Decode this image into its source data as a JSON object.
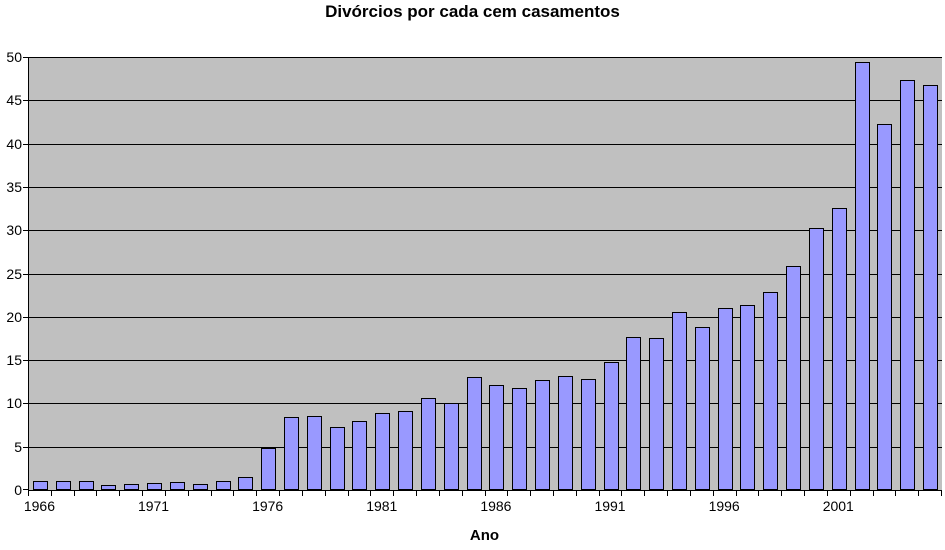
{
  "chart_data": {
    "type": "bar",
    "title": "Divórcios por cada cem casamentos",
    "xlabel": "Ano",
    "ylabel": "",
    "ylim": [
      0,
      50
    ],
    "ytick_step": 5,
    "yticks": [
      0,
      5,
      10,
      15,
      20,
      25,
      30,
      35,
      40,
      45,
      50
    ],
    "grid": true,
    "legend": false,
    "categories": [
      "1966",
      "1967",
      "1968",
      "1969",
      "1970",
      "1971",
      "1972",
      "1973",
      "1974",
      "1975",
      "1976",
      "1977",
      "1978",
      "1979",
      "1980",
      "1981",
      "1982",
      "1983",
      "1984",
      "1985",
      "1986",
      "1987",
      "1988",
      "1989",
      "1990",
      "1991",
      "1992",
      "1993",
      "1994",
      "1995",
      "1996",
      "1997",
      "1998",
      "1999",
      "2000",
      "2001",
      "2002",
      "2003",
      "2004",
      "2005"
    ],
    "values": [
      1.0,
      1.0,
      1.0,
      0.6,
      0.7,
      0.8,
      0.9,
      0.7,
      1.0,
      1.5,
      4.8,
      8.4,
      8.6,
      7.3,
      8.0,
      8.9,
      9.1,
      10.6,
      10.0,
      13.0,
      12.1,
      11.8,
      12.7,
      13.2,
      12.8,
      14.8,
      17.7,
      17.6,
      20.6,
      18.8,
      21.0,
      21.4,
      22.9,
      25.9,
      30.2,
      32.6,
      49.4,
      42.3,
      47.3,
      46.8
    ],
    "xticks": [
      {
        "index": 0,
        "label": "1966"
      },
      {
        "index": 5,
        "label": "1971"
      },
      {
        "index": 10,
        "label": "1976"
      },
      {
        "index": 15,
        "label": "1981"
      },
      {
        "index": 20,
        "label": "1986"
      },
      {
        "index": 25,
        "label": "1991"
      },
      {
        "index": 30,
        "label": "1996"
      },
      {
        "index": 35,
        "label": "2001"
      }
    ],
    "colors": {
      "bar_fill": "#9999FF",
      "bar_border": "#000000",
      "plot_background": "#C0C0C0",
      "gridline": "#000000",
      "page_background": "#FFFFFF",
      "text": "#000000"
    }
  }
}
